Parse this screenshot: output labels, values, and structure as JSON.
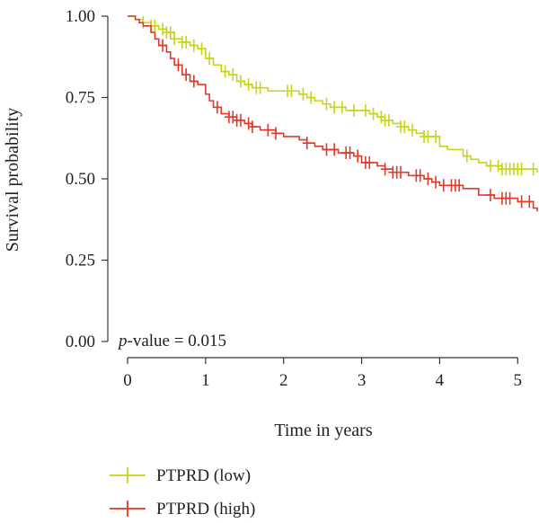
{
  "chart_data": {
    "type": "line",
    "title": "",
    "xlabel": "Time in years",
    "ylabel": "Survival probability",
    "xlim": [
      0,
      5.25
    ],
    "ylim": [
      0,
      1.0
    ],
    "x_ticks": [
      0,
      1,
      2,
      3,
      4,
      5
    ],
    "y_ticks": [
      0.0,
      0.25,
      0.5,
      0.75,
      1.0
    ],
    "x_tick_labels": [
      "0",
      "1",
      "2",
      "3",
      "4",
      "5"
    ],
    "y_tick_labels": [
      "0.00",
      "0.25",
      "0.50",
      "0.75",
      "1.00"
    ],
    "grid": false,
    "legend_position": "bottom-left",
    "annotation": {
      "p_prefix": "p",
      "text_after": "-value = 0.015"
    },
    "series": [
      {
        "name": "PTPRD (low)",
        "color": "#c8d41a",
        "x": [
          0,
          0.1,
          0.2,
          0.3,
          0.4,
          0.5,
          0.6,
          0.7,
          0.8,
          0.9,
          1.0,
          1.1,
          1.2,
          1.3,
          1.4,
          1.5,
          1.6,
          1.8,
          2.0,
          2.2,
          2.3,
          2.4,
          2.5,
          2.6,
          2.8,
          3.0,
          3.1,
          3.2,
          3.3,
          3.4,
          3.5,
          3.6,
          3.7,
          3.8,
          4.0,
          4.1,
          4.3,
          4.4,
          4.5,
          4.6,
          4.8,
          5.0,
          5.25
        ],
        "y": [
          1.0,
          0.99,
          0.98,
          0.97,
          0.96,
          0.95,
          0.93,
          0.92,
          0.91,
          0.9,
          0.87,
          0.85,
          0.83,
          0.82,
          0.8,
          0.79,
          0.78,
          0.77,
          0.77,
          0.76,
          0.75,
          0.74,
          0.73,
          0.72,
          0.71,
          0.71,
          0.7,
          0.69,
          0.68,
          0.67,
          0.66,
          0.65,
          0.64,
          0.63,
          0.6,
          0.59,
          0.57,
          0.56,
          0.55,
          0.54,
          0.53,
          0.53,
          0.52
        ],
        "censored_x": [
          0.2,
          0.3,
          0.35,
          0.45,
          0.5,
          0.55,
          0.6,
          0.7,
          0.75,
          0.85,
          0.95,
          1.05,
          1.25,
          1.35,
          1.45,
          1.55,
          1.65,
          1.7,
          2.05,
          2.1,
          2.25,
          2.35,
          2.55,
          2.65,
          2.75,
          2.9,
          3.05,
          3.15,
          3.25,
          3.3,
          3.35,
          3.5,
          3.55,
          3.65,
          3.8,
          3.85,
          3.95,
          4.35,
          4.65,
          4.75,
          4.8,
          4.85,
          4.9,
          4.95,
          5.0,
          5.05,
          5.2
        ]
      },
      {
        "name": "PTPRD (high)",
        "color": "#e03a2a",
        "x": [
          0,
          0.1,
          0.15,
          0.2,
          0.3,
          0.35,
          0.4,
          0.5,
          0.55,
          0.6,
          0.7,
          0.8,
          0.9,
          1.0,
          1.05,
          1.1,
          1.2,
          1.3,
          1.4,
          1.5,
          1.6,
          1.7,
          1.8,
          1.9,
          2.0,
          2.2,
          2.3,
          2.4,
          2.5,
          2.7,
          2.9,
          3.0,
          3.2,
          3.3,
          3.4,
          3.6,
          3.8,
          3.9,
          4.0,
          4.1,
          4.3,
          4.5,
          4.7,
          5.0,
          5.2,
          5.25
        ],
        "y": [
          1.0,
          0.99,
          0.98,
          0.97,
          0.95,
          0.93,
          0.91,
          0.89,
          0.87,
          0.85,
          0.82,
          0.8,
          0.79,
          0.76,
          0.74,
          0.72,
          0.7,
          0.69,
          0.68,
          0.67,
          0.66,
          0.65,
          0.65,
          0.64,
          0.63,
          0.62,
          0.61,
          0.6,
          0.59,
          0.58,
          0.57,
          0.55,
          0.54,
          0.53,
          0.52,
          0.51,
          0.5,
          0.49,
          0.48,
          0.48,
          0.47,
          0.45,
          0.44,
          0.43,
          0.41,
          0.4
        ],
        "censored_x": [
          0.45,
          0.65,
          0.75,
          0.85,
          1.15,
          1.3,
          1.35,
          1.4,
          1.45,
          1.55,
          1.6,
          1.8,
          1.9,
          2.3,
          2.55,
          2.65,
          2.8,
          2.85,
          2.95,
          3.05,
          3.1,
          3.3,
          3.4,
          3.45,
          3.5,
          3.7,
          3.75,
          3.85,
          3.95,
          4.05,
          4.15,
          4.2,
          4.25,
          4.65,
          4.8,
          4.85,
          4.9,
          5.05,
          5.15
        ]
      }
    ]
  }
}
